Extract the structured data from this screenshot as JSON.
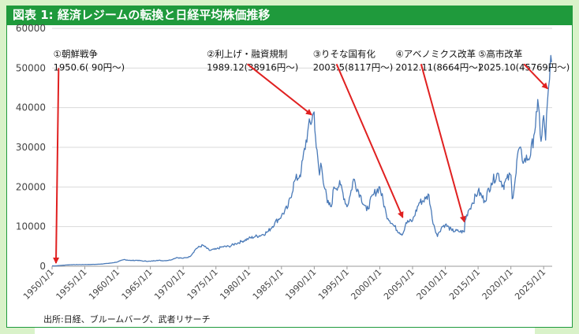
{
  "title": "図表 1: 経済レジームの転換と日経平均株価推移",
  "source": "出所:日経、ブルームバーグ、武者リサーチ",
  "colors": {
    "header": "#1f9a3c",
    "line": "#4a7ab8",
    "arrow": "#e02020",
    "background": "#d9f2c9"
  },
  "chart_data": {
    "type": "line",
    "ylim": [
      0,
      60000
    ],
    "yticks": [
      "0",
      "10000",
      "20000",
      "30000",
      "40000",
      "50000",
      "60000"
    ],
    "xticks": [
      "1950/1/1",
      "1955/1/1",
      "1960/1/1",
      "1965/1/1",
      "1970/1/1",
      "1975/1/1",
      "1980/1/1",
      "1985/1/1",
      "1990/1/1",
      "1995/1/1",
      "2000/1/1",
      "2005/1/1",
      "2010/1/1",
      "2015/1/1",
      "2020/1/1",
      "2025/1/1"
    ],
    "xlim": [
      1950,
      2026.3
    ],
    "grid": "horizontal",
    "series": [
      {
        "points": [
          [
            1950.0,
            100
          ],
          [
            1950.5,
            90
          ],
          [
            1952,
            300
          ],
          [
            1953,
            400
          ],
          [
            1955,
            420
          ],
          [
            1957,
            500
          ],
          [
            1959,
            800
          ],
          [
            1960,
            1100
          ],
          [
            1961,
            1700
          ],
          [
            1962,
            1450
          ],
          [
            1963,
            1500
          ],
          [
            1964,
            1300
          ],
          [
            1965,
            1250
          ],
          [
            1966,
            1500
          ],
          [
            1967,
            1400
          ],
          [
            1968,
            1550
          ],
          [
            1969,
            2200
          ],
          [
            1970,
            2000
          ],
          [
            1971,
            2400
          ],
          [
            1972,
            4500
          ],
          [
            1973,
            5300
          ],
          [
            1974,
            4000
          ],
          [
            1975,
            4300
          ],
          [
            1976,
            4900
          ],
          [
            1977,
            5000
          ],
          [
            1978,
            5700
          ],
          [
            1979,
            6300
          ],
          [
            1980,
            7000
          ],
          [
            1981,
            7500
          ],
          [
            1982,
            7900
          ],
          [
            1983,
            8800
          ],
          [
            1984,
            11000
          ],
          [
            1985,
            12700
          ],
          [
            1986,
            15000
          ],
          [
            1987,
            21500
          ],
          [
            1987.8,
            23000
          ],
          [
            1988,
            24000
          ],
          [
            1989,
            34000
          ],
          [
            1989.98,
            38916
          ],
          [
            1990.3,
            30000
          ],
          [
            1990.8,
            23000
          ],
          [
            1991,
            26000
          ],
          [
            1992,
            16000
          ],
          [
            1992.6,
            15000
          ],
          [
            1993,
            20000
          ],
          [
            1994,
            20500
          ],
          [
            1995,
            15000
          ],
          [
            1995.5,
            18000
          ],
          [
            1996,
            22000
          ],
          [
            1997,
            18000
          ],
          [
            1998,
            14000
          ],
          [
            1999,
            18000
          ],
          [
            2000,
            20000
          ],
          [
            2001,
            13000
          ],
          [
            2002,
            10500
          ],
          [
            2003,
            8500
          ],
          [
            2003.5,
            8117
          ],
          [
            2004,
            11000
          ],
          [
            2005,
            11500
          ],
          [
            2006,
            16000
          ],
          [
            2007,
            17000
          ],
          [
            2007.5,
            18000
          ],
          [
            2008,
            12000
          ],
          [
            2008.8,
            7500
          ],
          [
            2009,
            8500
          ],
          [
            2009.5,
            10000
          ],
          [
            2010,
            10500
          ],
          [
            2011,
            9000
          ],
          [
            2012,
            8800
          ],
          [
            2012.9,
            8664
          ],
          [
            2013,
            11500
          ],
          [
            2013.5,
            14000
          ],
          [
            2014,
            15500
          ],
          [
            2015,
            19000
          ],
          [
            2016,
            16500
          ],
          [
            2017,
            21000
          ],
          [
            2018,
            23500
          ],
          [
            2018.9,
            20000
          ],
          [
            2019,
            21000
          ],
          [
            2020,
            23000
          ],
          [
            2020.2,
            17000
          ],
          [
            2020.8,
            23500
          ],
          [
            2021,
            28000
          ],
          [
            2021.2,
            29500
          ],
          [
            2022,
            26500
          ],
          [
            2023,
            28000
          ],
          [
            2023.5,
            33000
          ],
          [
            2024,
            39000
          ],
          [
            2024.2,
            40500
          ],
          [
            2024.6,
            31500
          ],
          [
            2025,
            38000
          ],
          [
            2025.3,
            31800
          ],
          [
            2025.6,
            42000
          ],
          [
            2025.8,
            45769
          ],
          [
            2026.0,
            51000
          ],
          [
            2026.2,
            51500
          ]
        ]
      }
    ],
    "annotations": [
      {
        "line1": "①朝鮮戦争",
        "line2": "1950.6( 90円～)",
        "x": 1950.5,
        "y": 90,
        "label_x": 1950.2,
        "label_y": 52000
      },
      {
        "line1": "②利上げ・融資規制",
        "line2": "1989.12(38916円～)",
        "x": 1989.98,
        "y": 38916,
        "label_x": 1973.6,
        "label_y": 52000
      },
      {
        "line1": "③りそな国有化",
        "line2": "2003.5(8117円～)",
        "x": 2003.5,
        "y": 8117,
        "label_x": 1989.8,
        "label_y": 52000
      },
      {
        "line1": "④アベノミクス改革",
        "line2": "2012.11(8664円～)",
        "x": 2012.9,
        "y": 8664,
        "label_x": 2002.4,
        "label_y": 52000
      },
      {
        "line1": "⑤高市改革",
        "line2": "2025.10(45769円～)",
        "x": 2025.8,
        "y": 45769,
        "label_x": 2015.0,
        "label_y": 52000
      }
    ]
  }
}
